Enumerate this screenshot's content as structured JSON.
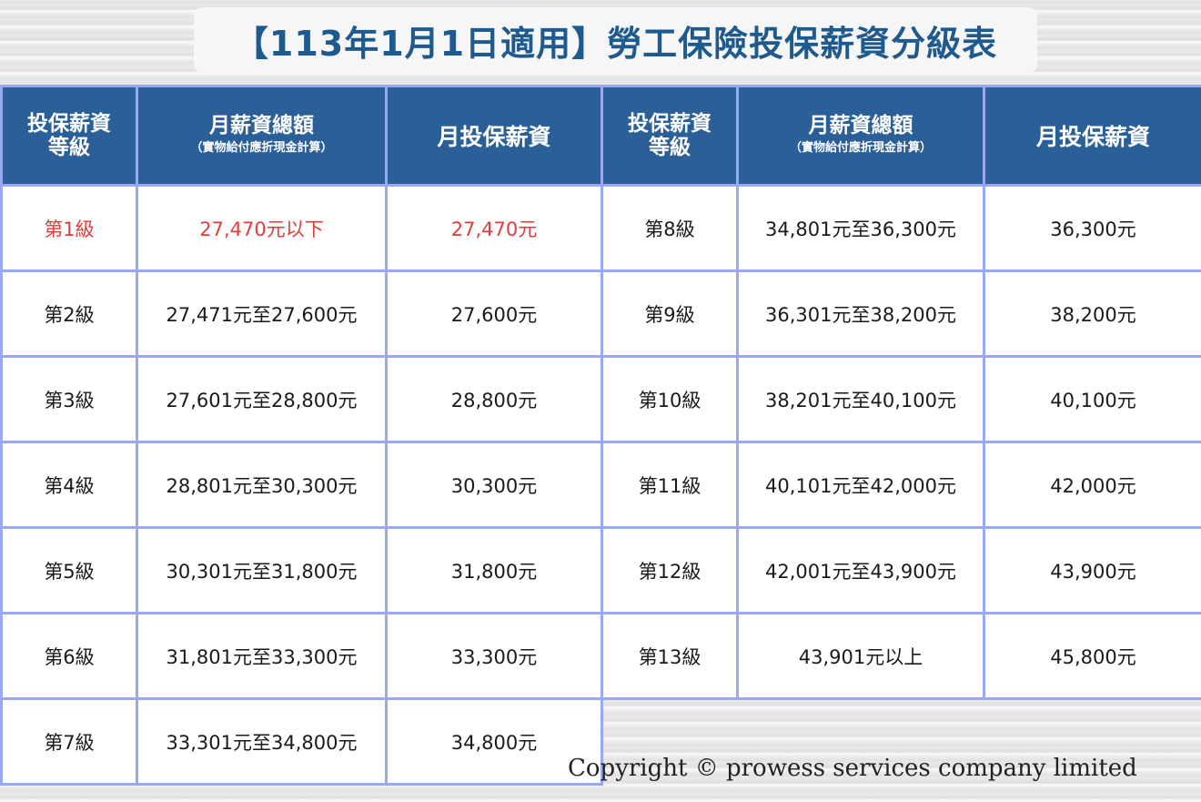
{
  "title": "【113年1月1日適用】勞工保險投保薪資分級表",
  "headers": {
    "grade": "投保薪資等級",
    "grade_line1": "投保薪資",
    "grade_line2": "等級",
    "salary": "月薪資總額",
    "salary_note": "（實物給付應折現金計算）",
    "insured": "月投保薪資"
  },
  "left_rows": [
    {
      "grade": "第1級",
      "salary": "27,470元以下",
      "insured": "27,470元"
    },
    {
      "grade": "第2級",
      "salary": "27,471元至27,600元",
      "insured": "27,600元"
    },
    {
      "grade": "第3級",
      "salary": "27,601元至28,800元",
      "insured": "28,800元"
    },
    {
      "grade": "第4級",
      "salary": "28,801元至30,300元",
      "insured": "30,300元"
    },
    {
      "grade": "第5級",
      "salary": "30,301元至31,800元",
      "insured": "31,800元"
    },
    {
      "grade": "第6級",
      "salary": "31,801元至33,300元",
      "insured": "33,300元"
    },
    {
      "grade": "第7級",
      "salary": "33,301元至34,800元",
      "insured": "34,800元"
    }
  ],
  "right_rows": [
    {
      "grade": "第8級",
      "salary": "34,801元至36,300元",
      "insured": "36,300元"
    },
    {
      "grade": "第9級",
      "salary": "36,301元至38,200元",
      "insured": "38,200元"
    },
    {
      "grade": "第10級",
      "salary": "38,201元至40,100元",
      "insured": "40,100元"
    },
    {
      "grade": "第11級",
      "salary": "40,101元至42,000元",
      "insured": "42,000元"
    },
    {
      "grade": "第12級",
      "salary": "42,001元至43,900元",
      "insured": "43,900元"
    },
    {
      "grade": "第13級",
      "salary": "43,901元以上",
      "insured": "45,800元"
    }
  ],
  "copyright": "Copyright © prowess services company limited",
  "colors": {
    "header_bg": "#2b5f98",
    "title": "#1f5a8e",
    "highlight": "#e43b3b",
    "border": "#9aa8f2"
  }
}
